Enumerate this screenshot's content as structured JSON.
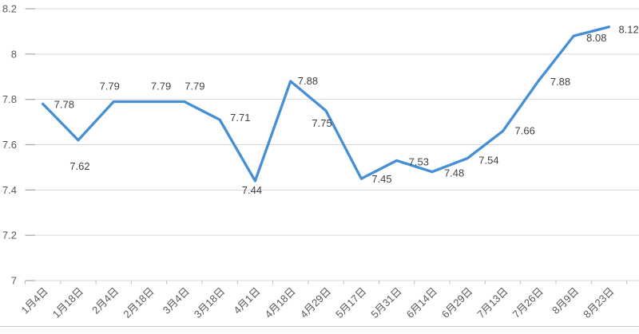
{
  "chart_data": {
    "type": "line",
    "title": "",
    "xlabel": "",
    "ylabel": "",
    "legend": "none",
    "grid": true,
    "categories": [
      "1月4日",
      "1月18日",
      "2月4日",
      "2月18日",
      "3月4日",
      "3月18日",
      "4月1日",
      "4月18日",
      "4月29日",
      "5月17日",
      "5月31日",
      "6月14日",
      "6月29日",
      "7月13日",
      "7月26日",
      "8月9日",
      "8月23日"
    ],
    "values": [
      7.78,
      7.62,
      7.79,
      7.79,
      7.79,
      7.71,
      7.44,
      7.88,
      7.75,
      7.45,
      7.53,
      7.48,
      7.54,
      7.66,
      7.88,
      8.08,
      8.12
    ],
    "data_labels": [
      "7.78",
      "7.62",
      "7.79",
      "7.79",
      "7.79",
      "7.71",
      "7.44",
      "7.88",
      "7.75",
      "7.45",
      "7.53",
      "7.48",
      "7.54",
      "7.66",
      "7.88",
      "8.08",
      "8.12"
    ],
    "ylim": [
      7,
      8.2
    ],
    "y_ticks": [
      {
        "value": 8.2,
        "label": "8.2"
      },
      {
        "value": 8,
        "label": "8"
      },
      {
        "value": 7.8,
        "label": "7.8"
      },
      {
        "value": 7.6,
        "label": "7.6"
      },
      {
        "value": 7.4,
        "label": "7.4"
      },
      {
        "value": 7.2,
        "label": "7.2"
      },
      {
        "value": 7,
        "label": "7"
      }
    ],
    "colors": {
      "line": "#4590D5",
      "gridline": "#D9D9D9",
      "grid_start_dash": "#A9A9A9",
      "axis_tick": "#BFBFBF",
      "axis_text": "#595959",
      "data_label_text": "#404040"
    },
    "layout": {
      "plot_left": 31.5,
      "plot_right": 800,
      "plot_top": 11,
      "axis_y": 352,
      "category_step": 44.3,
      "y_label_x": 21,
      "x_label_y": 366,
      "x_label_rotation": -45,
      "font_size": 13,
      "line_width": 3.3,
      "label_offsets": [
        [
          14,
          5,
          "s"
        ],
        [
          2,
          37,
          "m"
        ],
        [
          -5,
          -15,
          "m"
        ],
        [
          15,
          -15,
          "m"
        ],
        [
          13,
          -15,
          "m"
        ],
        [
          13,
          2,
          "s"
        ],
        [
          -4,
          16,
          "m"
        ],
        [
          9,
          4,
          "s"
        ],
        [
          -5,
          20,
          "m"
        ],
        [
          13,
          5,
          "s"
        ],
        [
          15,
          6,
          "s"
        ],
        [
          15,
          6,
          "s"
        ],
        [
          14,
          7,
          "s"
        ],
        [
          15,
          4,
          "s"
        ],
        [
          15,
          5,
          "s"
        ],
        [
          16,
          7,
          "s"
        ],
        [
          12,
          8,
          "s"
        ]
      ]
    }
  }
}
